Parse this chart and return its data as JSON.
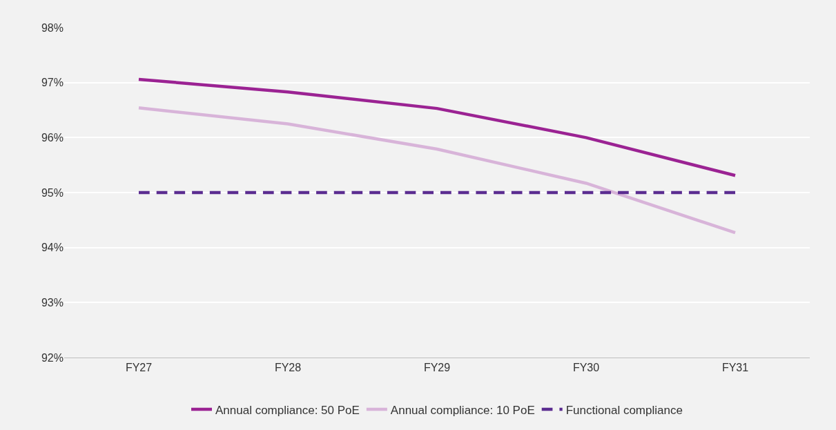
{
  "chart_data": {
    "type": "line",
    "categories": [
      "FY27",
      "FY28",
      "FY29",
      "FY30",
      "FY31"
    ],
    "series": [
      {
        "name": "Annual compliance: 50 PoE",
        "color": "#9b2393",
        "values": [
          97.06,
          96.83,
          96.53,
          96.0,
          95.31
        ]
      },
      {
        "name": "Annual compliance: 10 PoE",
        "color": "#d8b4d9",
        "values": [
          96.54,
          96.25,
          95.79,
          95.17,
          94.27
        ]
      },
      {
        "name": "Functional compliance",
        "color": "#5b2d91",
        "values": [
          95,
          95,
          95,
          95,
          95
        ],
        "line_style": "dashed"
      }
    ],
    "ylim": [
      92,
      98
    ],
    "yticks": [
      {
        "value": 92,
        "label": "92%"
      },
      {
        "value": 93,
        "label": "93%"
      },
      {
        "value": 94,
        "label": "94%"
      },
      {
        "value": 95,
        "label": "95%"
      },
      {
        "value": 96,
        "label": "96%"
      },
      {
        "value": 97,
        "label": "97%"
      },
      {
        "value": 98,
        "label": "98%"
      }
    ],
    "grid": "y",
    "legend": "bottom",
    "marker": "none",
    "line_style": "solid"
  }
}
